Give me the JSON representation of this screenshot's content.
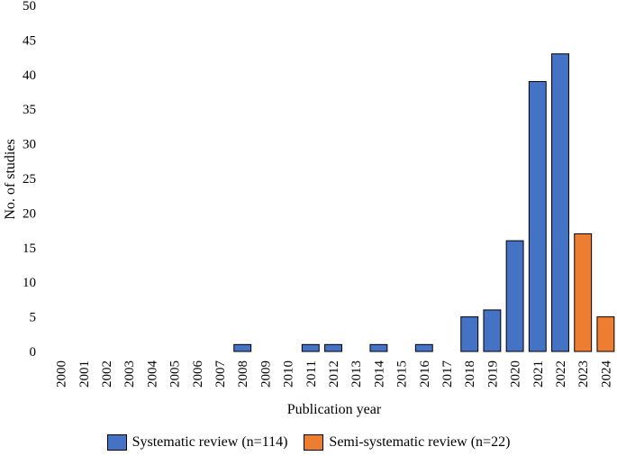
{
  "chart_data": {
    "type": "bar",
    "categories": [
      "2000",
      "2001",
      "2002",
      "2003",
      "2004",
      "2005",
      "2006",
      "2007",
      "2008",
      "2009",
      "2010",
      "2011",
      "2012",
      "2013",
      "2014",
      "2015",
      "2016",
      "2017",
      "2018",
      "2019",
      "2020",
      "2021",
      "2022",
      "2023",
      "2024"
    ],
    "series": [
      {
        "name": "Systematic review (n=114)",
        "color": "#4472C4",
        "values": [
          0,
          0,
          0,
          0,
          0,
          0,
          0,
          0,
          1,
          0,
          0,
          1,
          1,
          0,
          1,
          0,
          1,
          0,
          5,
          6,
          16,
          39,
          43,
          0,
          0
        ]
      },
      {
        "name": "Semi-systematic review (n=22)",
        "color": "#ED7D31",
        "values": [
          0,
          0,
          0,
          0,
          0,
          0,
          0,
          0,
          0,
          0,
          0,
          0,
          0,
          0,
          0,
          0,
          0,
          0,
          0,
          0,
          0,
          0,
          0,
          17,
          5
        ]
      }
    ],
    "xlabel": "Publication year",
    "ylabel": "No.  of studies",
    "ylim": [
      0,
      50
    ],
    "yticks": [
      0,
      5,
      10,
      15,
      20,
      25,
      30,
      35,
      40,
      45,
      50
    ],
    "grid": false,
    "legend_position": "bottom"
  }
}
